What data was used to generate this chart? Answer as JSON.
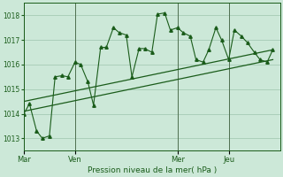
{
  "xlabel": "Pression niveau de la mer( hPa )",
  "background_color": "#cce8d8",
  "grid_color": "#aacfba",
  "line_color": "#1a5c1a",
  "text_color": "#1a5c1a",
  "ylim": [
    1012.5,
    1018.5
  ],
  "yticks": [
    1013,
    1014,
    1015,
    1016,
    1017,
    1018
  ],
  "day_labels": [
    "Mar",
    "Ven",
    "Mer",
    "Jeu"
  ],
  "day_positions": [
    0,
    36,
    108,
    144
  ],
  "xlim": [
    0,
    180
  ],
  "pressure_data": [
    [
      0,
      1014.0
    ],
    [
      4,
      1014.4
    ],
    [
      9,
      1013.3
    ],
    [
      13,
      1013.0
    ],
    [
      18,
      1013.1
    ],
    [
      22,
      1015.5
    ],
    [
      27,
      1015.55
    ],
    [
      31,
      1015.5
    ],
    [
      36,
      1016.1
    ],
    [
      40,
      1016.0
    ],
    [
      45,
      1015.3
    ],
    [
      49,
      1014.35
    ],
    [
      54,
      1016.7
    ],
    [
      58,
      1016.7
    ],
    [
      63,
      1017.5
    ],
    [
      67,
      1017.3
    ],
    [
      72,
      1017.2
    ],
    [
      76,
      1015.5
    ],
    [
      81,
      1016.65
    ],
    [
      85,
      1016.65
    ],
    [
      90,
      1016.5
    ],
    [
      94,
      1018.05
    ],
    [
      99,
      1018.1
    ],
    [
      103,
      1017.4
    ],
    [
      108,
      1017.5
    ],
    [
      112,
      1017.3
    ],
    [
      117,
      1017.15
    ],
    [
      121,
      1016.2
    ],
    [
      126,
      1016.1
    ],
    [
      130,
      1016.6
    ],
    [
      135,
      1017.5
    ],
    [
      139,
      1017.0
    ],
    [
      144,
      1016.2
    ],
    [
      148,
      1017.4
    ],
    [
      153,
      1017.15
    ],
    [
      157,
      1016.9
    ],
    [
      162,
      1016.5
    ],
    [
      166,
      1016.2
    ],
    [
      171,
      1016.1
    ],
    [
      175,
      1016.6
    ]
  ],
  "trend_line": [
    [
      0,
      1014.1
    ],
    [
      175,
      1016.2
    ]
  ],
  "trend_line2": [
    [
      0,
      1014.5
    ],
    [
      175,
      1016.6
    ]
  ]
}
